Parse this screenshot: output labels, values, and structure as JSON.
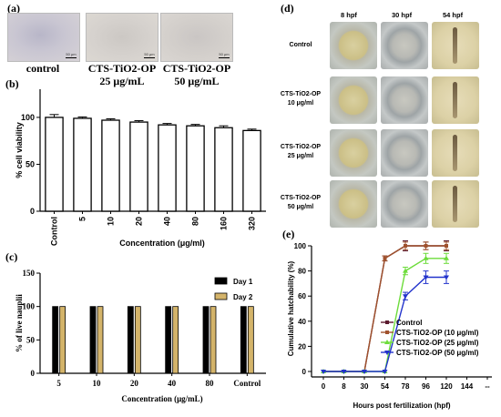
{
  "panel_a": {
    "letter": "(a)",
    "images": [
      {
        "label": "control",
        "scale": "50 μm"
      },
      {
        "label": "CTS-TiO2-OP\n25 μg/mL",
        "scale": "50 μm"
      },
      {
        "label": "CTS-TiO2-OP\n50 μg/mL",
        "scale": "50 μm"
      }
    ]
  },
  "panel_d": {
    "letter": "(d)",
    "columns": [
      "8 hpf",
      "30 hpf",
      "54 hpf"
    ],
    "rows": [
      "Control",
      "CTS-TiO2-OP\n10 μg/ml",
      "CTS-TiO2-OP\n25 μg/ml",
      "CTS-TiO2-OP\n50 μg/ml"
    ]
  },
  "chart_data": [
    {
      "panel": "(b)",
      "type": "bar",
      "categories": [
        "Control",
        "5",
        "10",
        "20",
        "40",
        "80",
        "160",
        "320"
      ],
      "values": [
        100,
        99,
        97,
        95,
        92,
        91,
        89,
        86
      ],
      "errors": [
        3,
        1.5,
        1.5,
        1.5,
        1.5,
        1.5,
        2,
        1.5
      ],
      "xlabel": "Concentration (μg/ml)",
      "ylabel": "% cell viability",
      "ylim": [
        0,
        130
      ],
      "yticks": [
        0,
        50,
        100
      ],
      "bar_color": "#ffffff"
    },
    {
      "panel": "(c)",
      "type": "bar",
      "categories": [
        "5",
        "10",
        "20",
        "40",
        "80",
        "Control"
      ],
      "series": [
        {
          "name": "Day 1",
          "values": [
            100,
            100,
            100,
            100,
            100,
            100
          ],
          "color": "#000000"
        },
        {
          "name": "Day 2",
          "values": [
            100,
            100,
            100,
            100,
            100,
            100
          ],
          "color": "#d4b46a"
        }
      ],
      "xlabel": "Concentration (μg/mL)",
      "ylabel": "% of live nauplii",
      "ylim": [
        0,
        150
      ],
      "yticks": [
        0,
        50,
        100,
        150
      ],
      "legend": "top-right"
    },
    {
      "panel": "(e)",
      "type": "line",
      "x_ticks": [
        "0",
        "8",
        "30",
        "54",
        "78",
        "96",
        "120",
        "144",
        "--"
      ],
      "series": [
        {
          "name": "Control",
          "color": "#5a1a2e",
          "marker": "square",
          "x": [
            0,
            8,
            30,
            54,
            78,
            96,
            120
          ],
          "y": [
            0,
            0,
            0,
            90,
            100,
            100,
            100
          ],
          "err": [
            0,
            0,
            0,
            2,
            4,
            3,
            4
          ]
        },
        {
          "name": "CTS-TiO2-OP (10 μg/ml)",
          "color": "#a0522d",
          "marker": "square",
          "x": [
            0,
            8,
            30,
            54,
            78,
            96,
            120
          ],
          "y": [
            0,
            0,
            0,
            90,
            100,
            100,
            100
          ],
          "err": [
            0,
            0,
            0,
            2,
            3,
            3,
            3
          ]
        },
        {
          "name": "CTS-TiO2-OP (25 μg/ml)",
          "color": "#6ddc3b",
          "marker": "triangle",
          "x": [
            0,
            8,
            30,
            54,
            78,
            96,
            120
          ],
          "y": [
            0,
            0,
            0,
            0,
            80,
            90,
            90
          ],
          "err": [
            0,
            0,
            0,
            0,
            3,
            4,
            4
          ]
        },
        {
          "name": "CTS-TiO2-OP (50 μg/ml)",
          "color": "#2233cc",
          "marker": "triangle-down",
          "x": [
            0,
            8,
            30,
            54,
            78,
            96,
            120
          ],
          "y": [
            0,
            0,
            0,
            0,
            60,
            75,
            75
          ],
          "err": [
            0,
            0,
            0,
            0,
            3,
            5,
            5
          ]
        }
      ],
      "xlabel": "Hours post fertilization (hpf)",
      "ylabel": "Cumulative hatchability (%)",
      "ylim": [
        0,
        100
      ],
      "yticks": [
        0,
        20,
        40,
        60,
        80,
        100
      ],
      "legend": "bottom-right"
    }
  ]
}
